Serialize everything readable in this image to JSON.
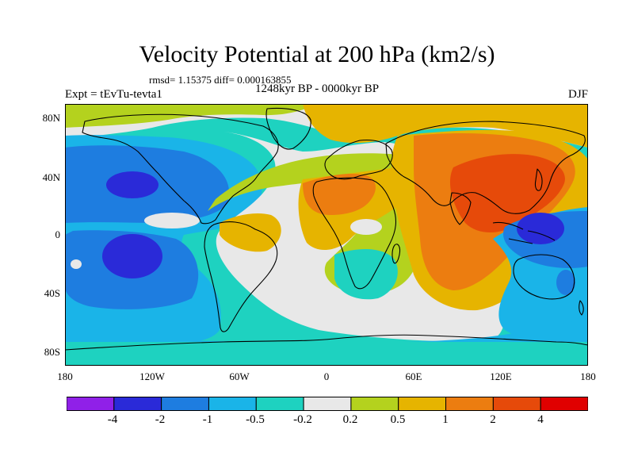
{
  "title": "Velocity Potential at 200 hPa (km2/s)",
  "stats": "rmsd= 1.15375 diff= 0.000163855",
  "period": "1248kyr BP - 0000kyr BP",
  "experiment": "Expt = tEvTu-tevta1",
  "season": "DJF",
  "lat_labels": [
    "80N",
    "40N",
    "0",
    "40S",
    "80S"
  ],
  "lon_labels": [
    "180",
    "120W",
    "60W",
    "0",
    "60E",
    "120E",
    "180"
  ],
  "colorbar": {
    "labels": [
      "-4",
      "-2",
      "-1",
      "-0.5",
      "-0.2",
      "0.2",
      "0.5",
      "1",
      "2",
      "4"
    ],
    "colors": [
      "#9020e8",
      "#2a2ad8",
      "#1e7de0",
      "#1ab4e8",
      "#1ed2c0",
      "#e8e8e8",
      "#b4d21e",
      "#e6b400",
      "#ec7d10",
      "#e64a0a",
      "#e00000"
    ]
  },
  "map_colors": {
    "ocean_default": "#1ed2c0",
    "neg_deep": "#2a2ad8",
    "neg_mid": "#1e7de0",
    "neg_light": "#1ab4e8",
    "neutral": "#e8e8e8",
    "pos_light": "#b4d21e",
    "pos_mid": "#e6b400",
    "pos_high": "#ec7d10",
    "pos_max": "#e64a0a"
  }
}
